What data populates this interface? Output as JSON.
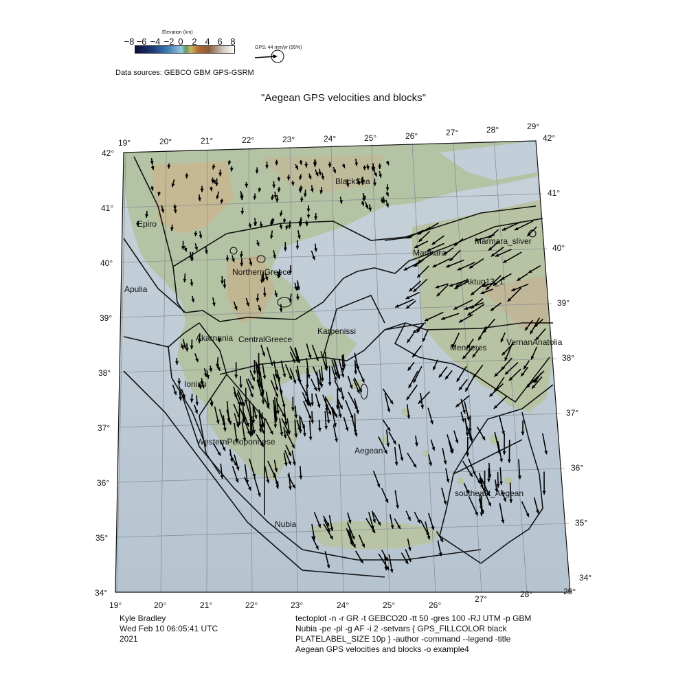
{
  "legend": {
    "elevation_title": "Elevation (km)",
    "colorbar_ticks": [
      "−8",
      "−6",
      "−4",
      "−2",
      "0",
      "2",
      "4",
      "6",
      "8"
    ],
    "gps_label": "GPS: 44 mm/yr (95%)"
  },
  "data_sources": "Data sources: GEBCO GBM GPS-GSRM",
  "title": "\"Aegean GPS velocities and blocks\"",
  "axes": {
    "top_lon": [
      "19°",
      "20°",
      "21°",
      "22°",
      "23°",
      "24°",
      "25°",
      "26°",
      "27°",
      "28°",
      "29°"
    ],
    "bottom_lon": [
      "19°",
      "20°",
      "21°",
      "22°",
      "23°",
      "24°",
      "25°",
      "26°",
      "27°",
      "28°",
      "29°"
    ],
    "left_lat": [
      "42°",
      "41°",
      "40°",
      "39°",
      "38°",
      "37°",
      "36°",
      "35°",
      "34°"
    ],
    "right_lat": [
      "42°",
      "41°",
      "40°",
      "39°",
      "38°",
      "37°",
      "36°",
      "35°",
      "34°"
    ]
  },
  "blocks": [
    "BlackSea",
    "Epiro",
    "Marmara",
    "Marmara_sliver",
    "NorthernGreece",
    "Aktug13_1",
    "Apulia",
    "Karpenissi",
    "Akarnania",
    "CentralGreece",
    "Menderes",
    "VernanAnatolia",
    "Ionian",
    "WesternPeloponnese",
    "Aegean",
    "southeast_Aegean",
    "Nubia"
  ],
  "footer": {
    "author_lines": [
      "Kyle Bradley",
      "Wed Feb 10 06:05:41 UTC",
      "2021"
    ],
    "command_lines": [
      "tectoplot -n -r GR -t GEBCO20 -tt 50 -gres 100 -RJ UTM -p GBM",
      "Nubia -pe -pl -g AF -i 2 -setvars { GPS_FILLCOLOR black",
      "PLATELABEL_SIZE 10p } -author -command --legend -title",
      "Aegean GPS velocities and blocks -o example4"
    ]
  },
  "colors": {
    "sea": "#bfcbd6",
    "land_low": "#a9bd9c",
    "land_high": "#c8b08a",
    "block_lines": "#111111",
    "arrows": "#000000"
  }
}
